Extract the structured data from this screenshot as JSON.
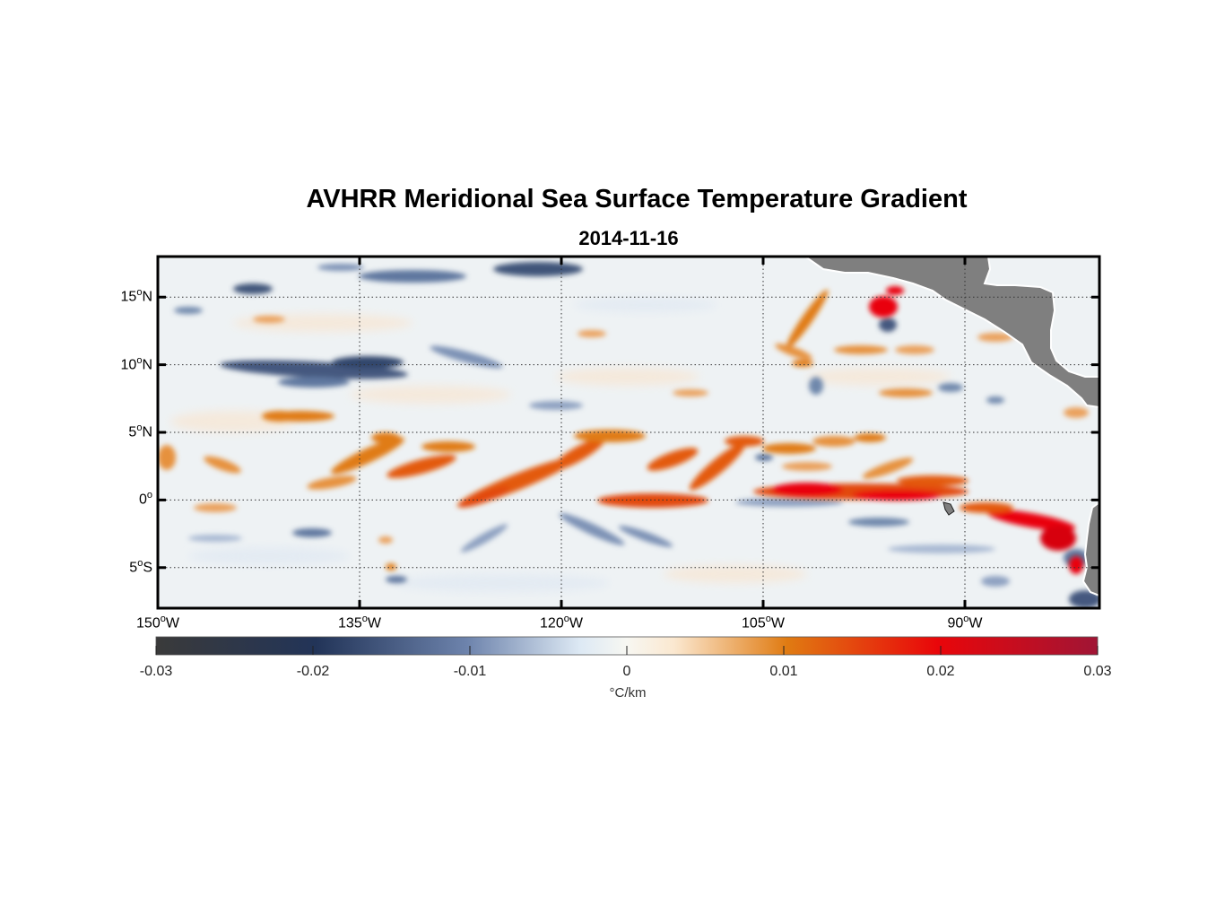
{
  "title": "AVHRR Meridional Sea Surface Temperature Gradient",
  "subtitle": "2014-11-16",
  "map": {
    "extent": {
      "lon_min": -150,
      "lon_max": -80,
      "lat_min": -8,
      "lat_max": 18
    },
    "lat_ticks": [
      {
        "lat": 15,
        "num": "15",
        "hemi": "N"
      },
      {
        "lat": 10,
        "num": "10",
        "hemi": "N"
      },
      {
        "lat": 5,
        "num": "5",
        "hemi": "N"
      },
      {
        "lat": 0,
        "num": "0",
        "hemi": ""
      },
      {
        "lat": -5,
        "num": "5",
        "hemi": "S"
      }
    ],
    "lon_ticks": [
      {
        "lon": -150,
        "num": "150",
        "hemi": "W"
      },
      {
        "lon": -135,
        "num": "135",
        "hemi": "W"
      },
      {
        "lon": -120,
        "num": "120",
        "hemi": "W"
      },
      {
        "lon": -105,
        "num": "105",
        "hemi": "W"
      },
      {
        "lon": -90,
        "num": "90",
        "hemi": "W"
      }
    ],
    "land_color": "#7f7f7f",
    "gridline_style": "dotted"
  },
  "colorbar": {
    "min": -0.03,
    "max": 0.03,
    "tick_labels": [
      "-0.03",
      "-0.02",
      "-0.01",
      "0",
      "0.01",
      "0.02",
      "0.03"
    ],
    "tick_values": [
      -0.03,
      -0.02,
      -0.01,
      0,
      0.01,
      0.02,
      0.03
    ],
    "units": "°C/km",
    "colors": [
      "#3a3a3a",
      "#223458",
      "#6d83ac",
      "#dde9f4",
      "#fbe8d0",
      "#e07b12",
      "#e9060a",
      "#a01535"
    ]
  }
}
